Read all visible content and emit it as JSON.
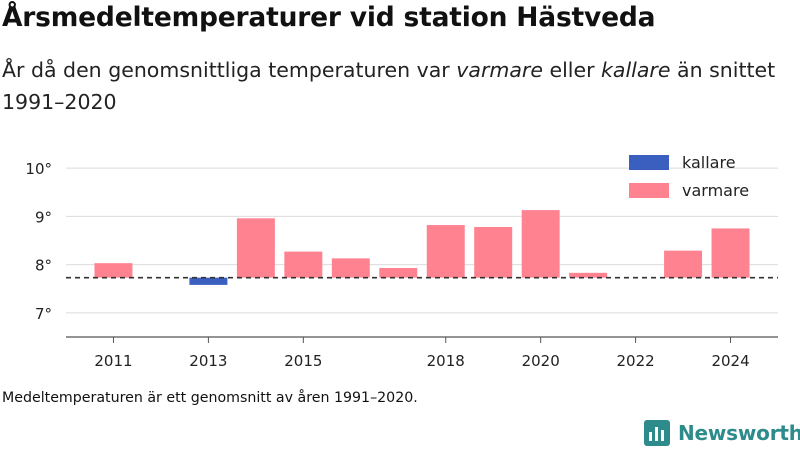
{
  "header": {
    "title": "Årsmedeltemperaturer vid station Hästveda",
    "subtitle_parts": [
      "År då den genomsnittliga temperaturen var ",
      "varmare",
      " eller ",
      "kallare",
      " än snittet 1991–2020"
    ]
  },
  "footer": {
    "note": "Medeltemperaturen är ett genomsnitt av åren 1991–2020.",
    "brand": "Newsworthy",
    "brand_icon": "bar-chart-icon",
    "brand_color": "#2e8b8b"
  },
  "chart_data": {
    "type": "bar",
    "title": "Årsmedeltemperaturer vid station Hästveda",
    "baseline": 7.73,
    "baseline_style": "dashed",
    "x": [
      2011,
      2013,
      2014,
      2015,
      2016,
      2017,
      2018,
      2019,
      2020,
      2021,
      2023,
      2024
    ],
    "values": [
      8.03,
      7.58,
      8.96,
      8.27,
      8.13,
      7.93,
      8.82,
      8.78,
      9.13,
      7.83,
      8.29,
      8.75
    ],
    "series": [
      {
        "name": "kallare",
        "color": "#3b5fbe"
      },
      {
        "name": "varmare",
        "color": "#ff8291"
      }
    ],
    "x_ticks": [
      "2011",
      "2013",
      "2015",
      "2018",
      "2020",
      "2022",
      "2024"
    ],
    "x_range": [
      2010,
      2025
    ],
    "y_ticks": [
      "10°",
      "9°",
      "8°",
      "7°"
    ],
    "ylim": [
      6.5,
      10.5
    ],
    "grid": true,
    "legend_position": "top-right"
  }
}
